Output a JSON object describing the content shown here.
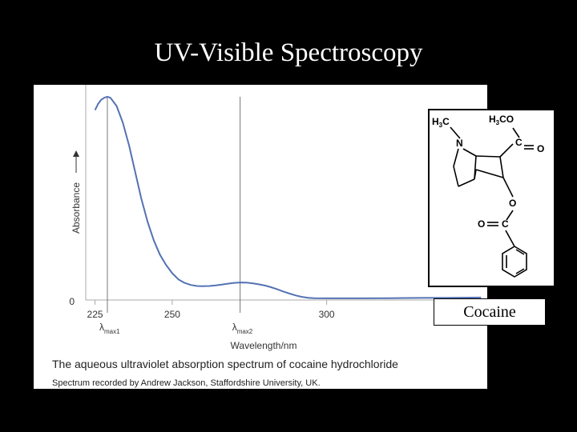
{
  "slide": {
    "title": "UV-Visible Spectroscopy"
  },
  "figure": {
    "caption": "The aqueous ultraviolet absorption spectrum of cocaine hydrochloride",
    "credit": "Spectrum recorded by Andrew Jackson, Staffordshire University, UK."
  },
  "structure": {
    "label": "Cocaine",
    "atom_labels": [
      "H3C",
      "H3CO",
      "N",
      "C",
      "O",
      "O",
      "O",
      "C"
    ]
  },
  "chart_data": {
    "type": "line",
    "xlabel": "Wavelength/nm",
    "ylabel": "Absorbance",
    "xlim": [
      222,
      352
    ],
    "ylim": [
      0,
      1.0
    ],
    "x_ticks": [
      225,
      250,
      300
    ],
    "y_ticks": [
      0
    ],
    "grid": false,
    "markers": [
      {
        "x": 229,
        "label": "λ",
        "sub": "max1"
      },
      {
        "x": 272,
        "label": "λ",
        "sub": "max2"
      }
    ],
    "series": [
      {
        "color": "#5472b3",
        "x": [
          225,
          226,
          227,
          228,
          229,
          230,
          232,
          234,
          236,
          238,
          240,
          242,
          244,
          246,
          248,
          250,
          252,
          254,
          256,
          258,
          260,
          262,
          264,
          266,
          268,
          270,
          272,
          274,
          276,
          278,
          280,
          282,
          284,
          286,
          288,
          290,
          292,
          294,
          296,
          300,
          305,
          310,
          320,
          330,
          340,
          350
        ],
        "y": [
          0.92,
          0.95,
          0.97,
          0.98,
          0.985,
          0.98,
          0.94,
          0.86,
          0.75,
          0.62,
          0.49,
          0.38,
          0.29,
          0.22,
          0.17,
          0.13,
          0.1,
          0.083,
          0.073,
          0.068,
          0.067,
          0.068,
          0.071,
          0.075,
          0.079,
          0.083,
          0.085,
          0.084,
          0.081,
          0.076,
          0.07,
          0.062,
          0.052,
          0.041,
          0.031,
          0.022,
          0.015,
          0.011,
          0.009,
          0.008,
          0.008,
          0.008,
          0.009,
          0.01,
          0.011,
          0.012
        ]
      }
    ]
  }
}
